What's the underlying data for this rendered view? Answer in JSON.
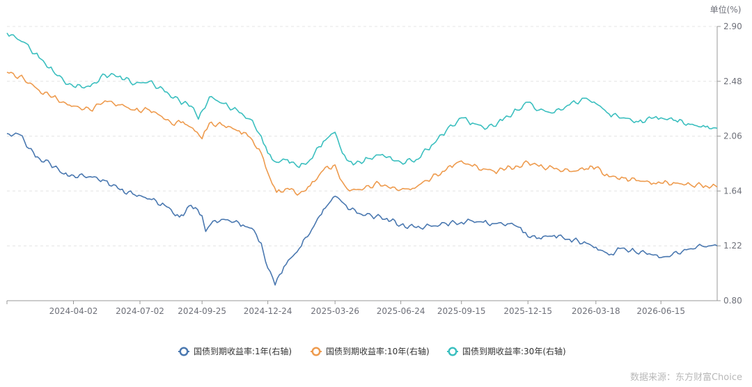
{
  "chart_data": {
    "type": "line",
    "title": "",
    "unit_label": "单位(%)",
    "y_axis_position": "right",
    "ylim": [
      0.8,
      2.9
    ],
    "y_ticks": [
      "2.90",
      "2.48",
      "2.06",
      "1.64",
      "1.22",
      "0.80"
    ],
    "x_tick_labels": [
      "2024-04-02",
      "2024-07-02",
      "2024-09-25",
      "2024-12-24",
      "2025-03-26",
      "2025-06-24",
      "2025-09-15",
      "2025-12-15",
      "2026-03-18",
      "2026-06-15"
    ],
    "x_range": [
      "2024-01-02",
      "2026-08-31"
    ],
    "grid": "horizontal-dashed",
    "legend_position": "bottom-center",
    "source_text": "数据来源：东方财富Choice",
    "series": [
      {
        "name": "国债到期收益率:1年(右轴)",
        "color": "#4a78b0",
        "points": [
          [
            "2024-01-02",
            2.08
          ],
          [
            "2024-01-20",
            2.07
          ],
          [
            "2024-02-10",
            1.9
          ],
          [
            "2024-03-01",
            1.85
          ],
          [
            "2024-03-20",
            1.77
          ],
          [
            "2024-04-02",
            1.76
          ],
          [
            "2024-04-25",
            1.75
          ],
          [
            "2024-05-15",
            1.72
          ],
          [
            "2024-06-05",
            1.65
          ],
          [
            "2024-06-25",
            1.61
          ],
          [
            "2024-07-15",
            1.58
          ],
          [
            "2024-08-05",
            1.53
          ],
          [
            "2024-08-25",
            1.44
          ],
          [
            "2024-09-10",
            1.53
          ],
          [
            "2024-09-25",
            1.45
          ],
          [
            "2024-09-30",
            1.33
          ],
          [
            "2024-10-10",
            1.41
          ],
          [
            "2024-10-30",
            1.42
          ],
          [
            "2024-11-20",
            1.38
          ],
          [
            "2024-12-05",
            1.34
          ],
          [
            "2024-12-15",
            1.24
          ],
          [
            "2024-12-24",
            1.05
          ],
          [
            "2025-01-03",
            0.92
          ],
          [
            "2025-01-15",
            1.06
          ],
          [
            "2025-02-05",
            1.2
          ],
          [
            "2025-02-25",
            1.37
          ],
          [
            "2025-03-10",
            1.5
          ],
          [
            "2025-03-26",
            1.6
          ],
          [
            "2025-04-10",
            1.53
          ],
          [
            "2025-04-25",
            1.47
          ],
          [
            "2025-05-15",
            1.45
          ],
          [
            "2025-06-05",
            1.43
          ],
          [
            "2025-06-24",
            1.38
          ],
          [
            "2025-07-15",
            1.36
          ],
          [
            "2025-08-05",
            1.37
          ],
          [
            "2025-08-25",
            1.39
          ],
          [
            "2025-09-15",
            1.4
          ],
          [
            "2025-09-30",
            1.41
          ],
          [
            "2025-10-15",
            1.4
          ],
          [
            "2025-10-30",
            1.39
          ],
          [
            "2025-11-20",
            1.39
          ],
          [
            "2025-12-05",
            1.36
          ],
          [
            "2025-12-15",
            1.29
          ],
          [
            "2025-12-30",
            1.28
          ],
          [
            "2026-01-20",
            1.3
          ],
          [
            "2026-02-10",
            1.27
          ],
          [
            "2026-03-05",
            1.24
          ],
          [
            "2026-03-18",
            1.21
          ],
          [
            "2026-04-05",
            1.15
          ],
          [
            "2026-04-20",
            1.2
          ],
          [
            "2026-05-10",
            1.18
          ],
          [
            "2026-05-30",
            1.16
          ],
          [
            "2026-06-15",
            1.13
          ],
          [
            "2026-06-30",
            1.15
          ],
          [
            "2026-07-20",
            1.19
          ],
          [
            "2026-08-10",
            1.22
          ],
          [
            "2026-08-31",
            1.22
          ]
        ]
      },
      {
        "name": "国债到期收益率:10年(右轴)",
        "color": "#ee9b4e",
        "points": [
          [
            "2024-01-02",
            2.55
          ],
          [
            "2024-01-25",
            2.5
          ],
          [
            "2024-02-15",
            2.41
          ],
          [
            "2024-03-05",
            2.36
          ],
          [
            "2024-03-25",
            2.3
          ],
          [
            "2024-04-02",
            2.29
          ],
          [
            "2024-04-25",
            2.26
          ],
          [
            "2024-05-15",
            2.33
          ],
          [
            "2024-06-05",
            2.3
          ],
          [
            "2024-06-25",
            2.26
          ],
          [
            "2024-07-15",
            2.26
          ],
          [
            "2024-08-01",
            2.21
          ],
          [
            "2024-08-15",
            2.15
          ],
          [
            "2024-08-30",
            2.17
          ],
          [
            "2024-09-15",
            2.1
          ],
          [
            "2024-09-25",
            2.04
          ],
          [
            "2024-10-05",
            2.16
          ],
          [
            "2024-10-25",
            2.14
          ],
          [
            "2024-11-15",
            2.1
          ],
          [
            "2024-11-30",
            2.05
          ],
          [
            "2024-12-15",
            1.93
          ],
          [
            "2024-12-24",
            1.78
          ],
          [
            "2025-01-05",
            1.63
          ],
          [
            "2025-01-20",
            1.66
          ],
          [
            "2025-02-05",
            1.62
          ],
          [
            "2025-02-20",
            1.68
          ],
          [
            "2025-03-10",
            1.8
          ],
          [
            "2025-03-26",
            1.84
          ],
          [
            "2025-04-05",
            1.71
          ],
          [
            "2025-04-15",
            1.64
          ],
          [
            "2025-05-05",
            1.66
          ],
          [
            "2025-05-25",
            1.7
          ],
          [
            "2025-06-10",
            1.66
          ],
          [
            "2025-06-24",
            1.65
          ],
          [
            "2025-07-10",
            1.66
          ],
          [
            "2025-07-30",
            1.72
          ],
          [
            "2025-08-20",
            1.79
          ],
          [
            "2025-09-05",
            1.84
          ],
          [
            "2025-09-15",
            1.87
          ],
          [
            "2025-09-30",
            1.83
          ],
          [
            "2025-10-15",
            1.81
          ],
          [
            "2025-10-30",
            1.79
          ],
          [
            "2025-11-15",
            1.81
          ],
          [
            "2025-12-01",
            1.83
          ],
          [
            "2025-12-15",
            1.86
          ],
          [
            "2025-12-30",
            1.83
          ],
          [
            "2026-01-20",
            1.81
          ],
          [
            "2026-02-10",
            1.79
          ],
          [
            "2026-03-05",
            1.81
          ],
          [
            "2026-03-18",
            1.82
          ],
          [
            "2026-04-05",
            1.75
          ],
          [
            "2026-04-25",
            1.74
          ],
          [
            "2026-05-15",
            1.72
          ],
          [
            "2026-06-05",
            1.7
          ],
          [
            "2026-06-15",
            1.7
          ],
          [
            "2026-07-05",
            1.7
          ],
          [
            "2026-07-25",
            1.69
          ],
          [
            "2026-08-15",
            1.68
          ],
          [
            "2026-08-31",
            1.67
          ]
        ]
      },
      {
        "name": "国债到期收益率:30年(右轴)",
        "color": "#3bbfbf",
        "points": [
          [
            "2024-01-02",
            2.85
          ],
          [
            "2024-01-25",
            2.78
          ],
          [
            "2024-02-15",
            2.66
          ],
          [
            "2024-03-05",
            2.56
          ],
          [
            "2024-03-20",
            2.48
          ],
          [
            "2024-04-02",
            2.44
          ],
          [
            "2024-04-25",
            2.44
          ],
          [
            "2024-05-15",
            2.53
          ],
          [
            "2024-06-05",
            2.52
          ],
          [
            "2024-06-25",
            2.46
          ],
          [
            "2024-07-15",
            2.48
          ],
          [
            "2024-08-05",
            2.4
          ],
          [
            "2024-08-25",
            2.33
          ],
          [
            "2024-09-10",
            2.29
          ],
          [
            "2024-09-20",
            2.19
          ],
          [
            "2024-10-05",
            2.36
          ],
          [
            "2024-10-25",
            2.31
          ],
          [
            "2024-11-15",
            2.24
          ],
          [
            "2024-11-30",
            2.19
          ],
          [
            "2024-12-15",
            2.06
          ],
          [
            "2024-12-24",
            1.93
          ],
          [
            "2025-01-05",
            1.86
          ],
          [
            "2025-01-20",
            1.88
          ],
          [
            "2025-02-05",
            1.82
          ],
          [
            "2025-02-20",
            1.88
          ],
          [
            "2025-03-10",
            2.02
          ],
          [
            "2025-03-26",
            2.09
          ],
          [
            "2025-04-05",
            1.93
          ],
          [
            "2025-04-20",
            1.84
          ],
          [
            "2025-05-10",
            1.89
          ],
          [
            "2025-05-30",
            1.92
          ],
          [
            "2025-06-15",
            1.87
          ],
          [
            "2025-06-24",
            1.86
          ],
          [
            "2025-07-15",
            1.88
          ],
          [
            "2025-08-05",
            1.99
          ],
          [
            "2025-08-25",
            2.1
          ],
          [
            "2025-09-15",
            2.2
          ],
          [
            "2025-09-30",
            2.16
          ],
          [
            "2025-10-20",
            2.12
          ],
          [
            "2025-11-10",
            2.18
          ],
          [
            "2025-11-30",
            2.26
          ],
          [
            "2025-12-15",
            2.32
          ],
          [
            "2025-12-30",
            2.26
          ],
          [
            "2026-01-20",
            2.24
          ],
          [
            "2026-02-10",
            2.3
          ],
          [
            "2026-03-05",
            2.35
          ],
          [
            "2026-03-18",
            2.31
          ],
          [
            "2026-04-05",
            2.23
          ],
          [
            "2026-04-25",
            2.2
          ],
          [
            "2026-05-15",
            2.17
          ],
          [
            "2026-06-05",
            2.2
          ],
          [
            "2026-06-15",
            2.2
          ],
          [
            "2026-07-05",
            2.18
          ],
          [
            "2026-07-25",
            2.15
          ],
          [
            "2026-08-15",
            2.13
          ],
          [
            "2026-08-31",
            2.12
          ]
        ]
      }
    ]
  }
}
